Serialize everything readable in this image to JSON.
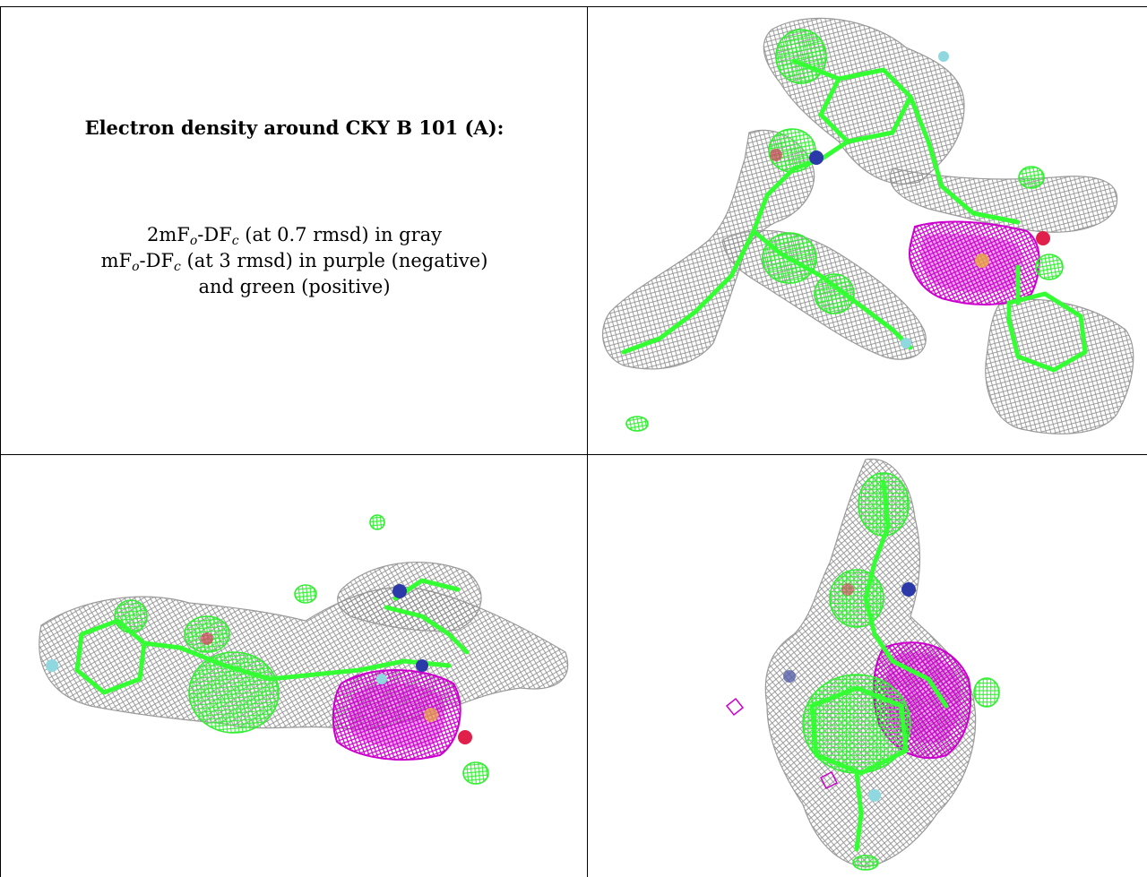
{
  "caption": {
    "title": "Electron density around CKY B 101 (A):",
    "line1": {
      "prefix": "2mF",
      "sub1": "o",
      "mid": "-DF",
      "sub2": "c",
      "suffix": " (at 0.7 rmsd) in gray"
    },
    "line2": {
      "prefix": "mF",
      "sub1": "o",
      "mid": "-DF",
      "sub2": "c",
      "suffix": " (at 3 rmsd) in purple (negative)"
    },
    "line3": "and green (positive)"
  },
  "colors": {
    "mesh_gray": "#8c8c8c",
    "negative_purple": "#cc00cc",
    "positive_green": "#33ff33",
    "nitrogen_blue": "#2b3aa8",
    "oxygen_red": "#e0204a",
    "fluorine_cyan": "#8fd8e0"
  },
  "panels": [
    {
      "id": "view-1",
      "description_icon": "density-view-top-right"
    },
    {
      "id": "view-2",
      "description_icon": "density-view-bottom-left"
    },
    {
      "id": "view-3",
      "description_icon": "density-view-bottom-right"
    }
  ]
}
